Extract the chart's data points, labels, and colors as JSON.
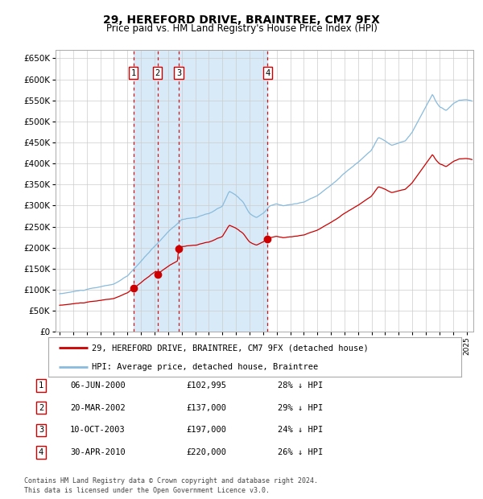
{
  "title": "29, HEREFORD DRIVE, BRAINTREE, CM7 9FX",
  "subtitle": "Price paid vs. HM Land Registry's House Price Index (HPI)",
  "background_color": "#ffffff",
  "plot_bg_color": "#ffffff",
  "grid_color": "#cccccc",
  "ylim": [
    0,
    670000
  ],
  "yticks": [
    0,
    50000,
    100000,
    150000,
    200000,
    250000,
    300000,
    350000,
    400000,
    450000,
    500000,
    550000,
    600000,
    650000
  ],
  "xlim_start": 1994.7,
  "xlim_end": 2025.5,
  "xticks": [
    1995,
    1996,
    1997,
    1998,
    1999,
    2000,
    2001,
    2002,
    2003,
    2004,
    2005,
    2006,
    2007,
    2008,
    2009,
    2010,
    2011,
    2012,
    2013,
    2014,
    2015,
    2016,
    2017,
    2018,
    2019,
    2020,
    2021,
    2022,
    2023,
    2024,
    2025
  ],
  "sale_dates": [
    2000.43,
    2002.22,
    2003.78,
    2010.33
  ],
  "sale_prices": [
    102995,
    137000,
    197000,
    220000
  ],
  "sale_labels": [
    "1",
    "2",
    "3",
    "4"
  ],
  "hpi_color": "#88bbdd",
  "sale_color": "#cc0000",
  "sale_dot_color": "#cc0000",
  "dashed_line_color": "#cc0000",
  "shade_color": "#d8eaf8",
  "legend_sale_label": "29, HEREFORD DRIVE, BRAINTREE, CM7 9FX (detached house)",
  "legend_hpi_label": "HPI: Average price, detached house, Braintree",
  "table_rows": [
    {
      "num": "1",
      "date": "06-JUN-2000",
      "price": "£102,995",
      "pct": "28% ↓ HPI"
    },
    {
      "num": "2",
      "date": "20-MAR-2002",
      "price": "£137,000",
      "pct": "29% ↓ HPI"
    },
    {
      "num": "3",
      "date": "10-OCT-2003",
      "price": "£197,000",
      "pct": "24% ↓ HPI"
    },
    {
      "num": "4",
      "date": "30-APR-2010",
      "price": "£220,000",
      "pct": "26% ↓ HPI"
    }
  ],
  "footer": "Contains HM Land Registry data © Crown copyright and database right 2024.\nThis data is licensed under the Open Government Licence v3.0."
}
